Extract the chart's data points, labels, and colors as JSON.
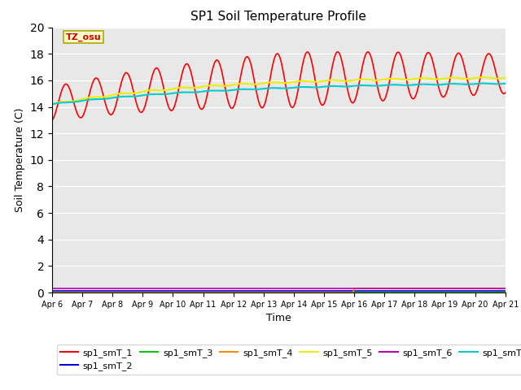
{
  "title": "SP1 Soil Temperature Profile",
  "xlabel": "Time",
  "ylabel": "Soil Temperature (C)",
  "ylim": [
    0,
    20
  ],
  "date_labels": [
    "Apr 6",
    "Apr 7",
    "Apr 8",
    "Apr 9",
    "Apr 10",
    "Apr 11",
    "Apr 12",
    "Apr 13",
    "Apr 14",
    "Apr 15",
    "Apr 16",
    "Apr 17",
    "Apr 18",
    "Apr 19",
    "Apr 20",
    "Apr 21"
  ],
  "annotation_text": "TZ_osu",
  "background_color": "#e8e8e8",
  "series": {
    "sp1_smT_1": {
      "color": "#ff0000",
      "linewidth": 1.2
    },
    "sp1_smT_2": {
      "color": "#0000dd",
      "linewidth": 1.2
    },
    "sp1_smT_3": {
      "color": "#00cc00",
      "linewidth": 1.2
    },
    "sp1_smT_4": {
      "color": "#ff8800",
      "linewidth": 1.2
    },
    "sp1_smT_5": {
      "color": "#eeee00",
      "linewidth": 1.5
    },
    "sp1_smT_6": {
      "color": "#bb00bb",
      "linewidth": 1.2
    },
    "sp1_smT_7": {
      "color": "#00cccc",
      "linewidth": 1.5
    }
  },
  "legend_colors": {
    "sp1_smT_1": "#ff0000",
    "sp1_smT_2": "#0000dd",
    "sp1_smT_3": "#00cc00",
    "sp1_smT_4": "#ff8800",
    "sp1_smT_5": "#eeee00",
    "sp1_smT_6": "#bb00bb",
    "sp1_smT_7": "#00cccc"
  }
}
